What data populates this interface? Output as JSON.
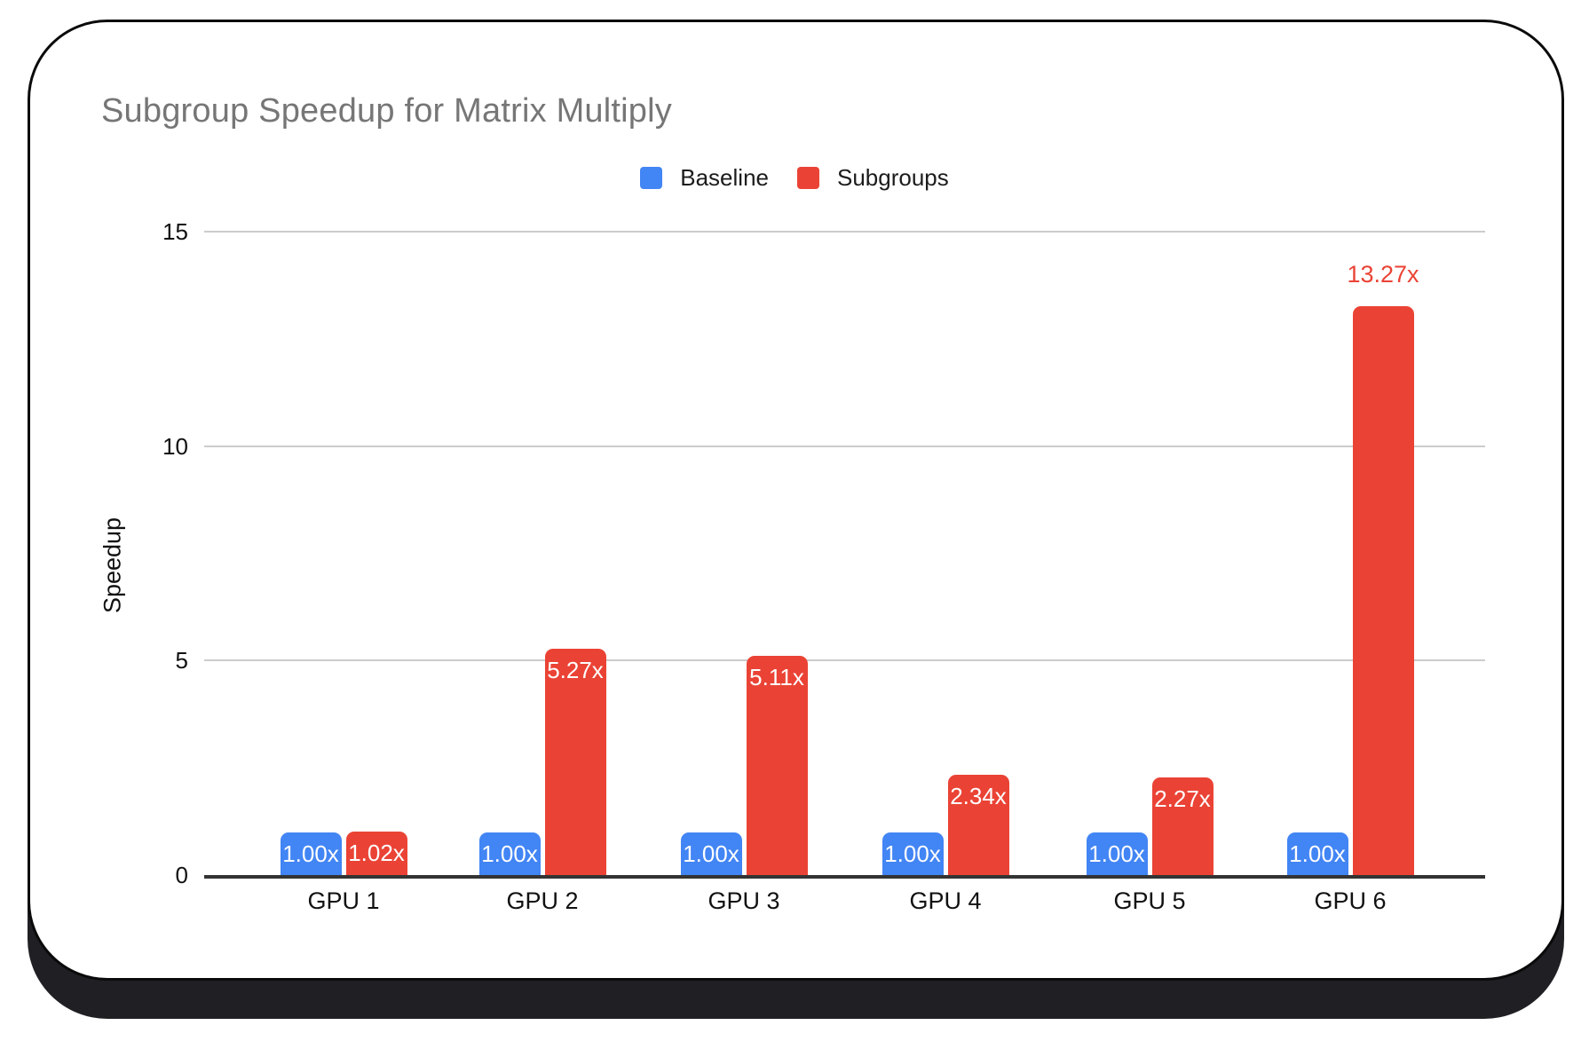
{
  "card": {
    "background": "#ffffff",
    "border_color": "#0a0a0a",
    "shadow_color": "#1f1f24"
  },
  "chart_data": {
    "type": "bar",
    "title": "Subgroup Speedup for Matrix Multiply",
    "title_color": "#767676",
    "xlabel": "",
    "ylabel": "Speedup",
    "categories": [
      "GPU 1",
      "GPU 2",
      "GPU 3",
      "GPU 4",
      "GPU 5",
      "GPU 6"
    ],
    "series": [
      {
        "name": "Baseline",
        "color": "#4285F4",
        "label_text_color": "#ffffff",
        "points": [
          {
            "v": 1.0,
            "label": "1.00x",
            "label_pos": "inside"
          },
          {
            "v": 1.0,
            "label": "1.00x",
            "label_pos": "inside"
          },
          {
            "v": 1.0,
            "label": "1.00x",
            "label_pos": "inside"
          },
          {
            "v": 1.0,
            "label": "1.00x",
            "label_pos": "inside"
          },
          {
            "v": 1.0,
            "label": "1.00x",
            "label_pos": "inside"
          },
          {
            "v": 1.0,
            "label": "1.00x",
            "label_pos": "inside"
          }
        ]
      },
      {
        "name": "Subgroups",
        "color": "#EA4335",
        "label_text_color": "#ffffff",
        "points": [
          {
            "v": 1.02,
            "label": "1.02x",
            "label_pos": "inside"
          },
          {
            "v": 5.27,
            "label": "5.27x",
            "label_pos": "inside"
          },
          {
            "v": 5.11,
            "label": "5.11x",
            "label_pos": "inside"
          },
          {
            "v": 2.34,
            "label": "2.34x",
            "label_pos": "inside"
          },
          {
            "v": 2.27,
            "label": "2.27x",
            "label_pos": "inside"
          },
          {
            "v": 13.27,
            "label": "13.27x",
            "label_pos": "above"
          }
        ]
      }
    ],
    "yticks": [
      0,
      5,
      10,
      15
    ],
    "ylim": [
      0,
      15
    ],
    "grid": true,
    "legend_position": "top",
    "axis_text_color": "#111111",
    "gridline_color": "#cccccc",
    "axis_line_color": "#333333"
  }
}
